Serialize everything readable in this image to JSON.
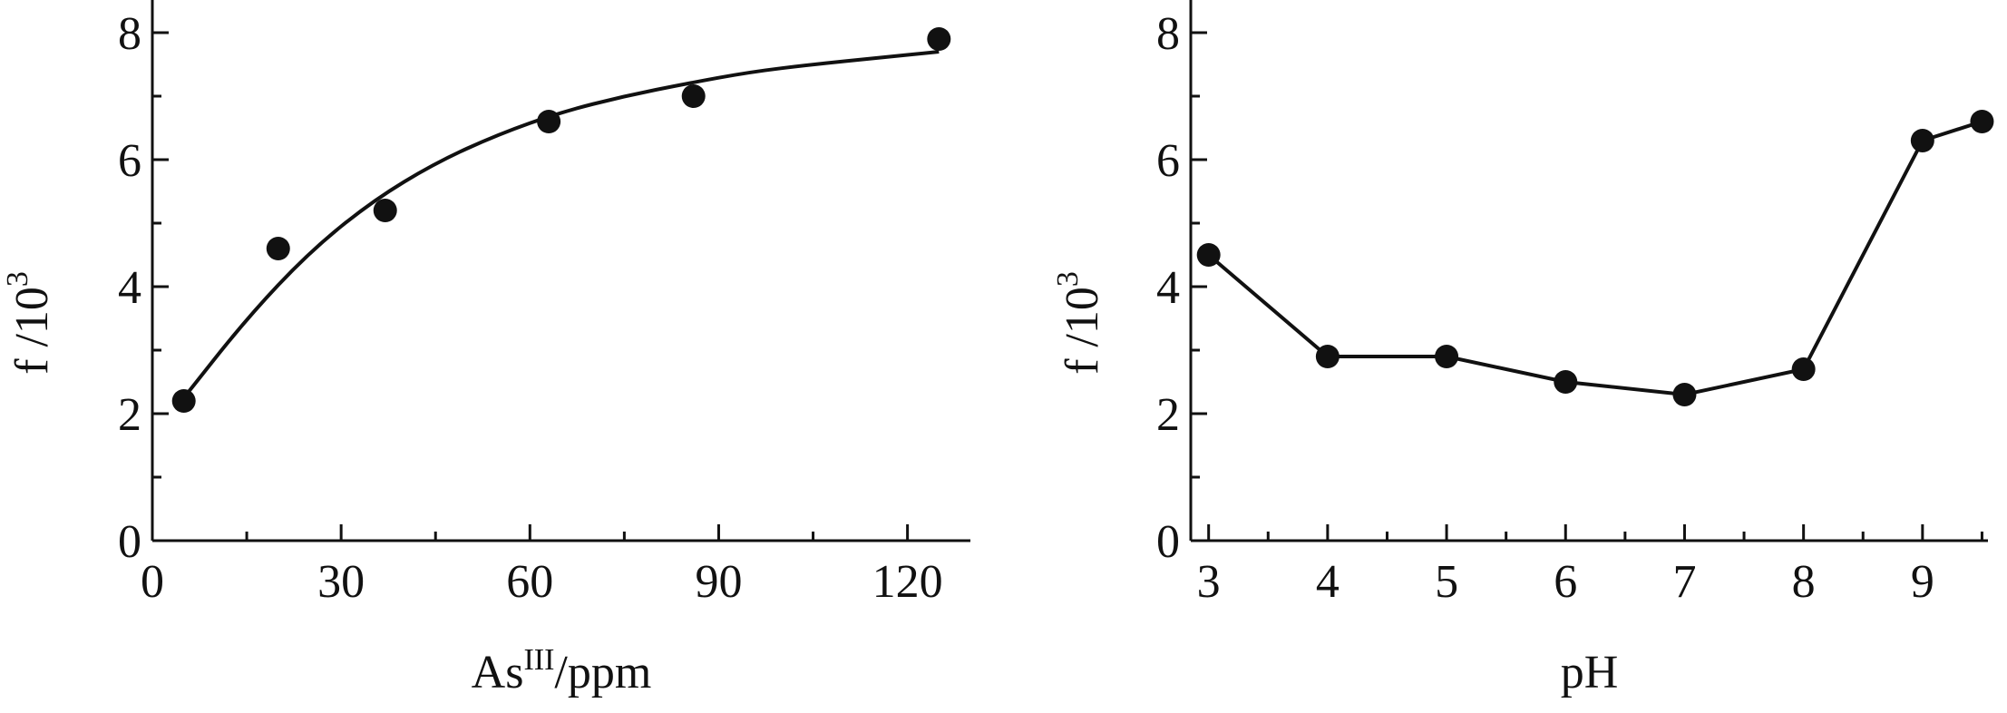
{
  "chart_data": [
    {
      "type": "scatter",
      "fit": "curve",
      "xlabel": {
        "base": "As",
        "sup": "III",
        "rest": "/ppm"
      },
      "ylabel": {
        "base": "f  /10",
        "sup": "3"
      },
      "xlim": [
        0,
        130
      ],
      "ylim": [
        0,
        8
      ],
      "xticks": [
        0,
        30,
        60,
        90,
        120
      ],
      "yticks": [
        0,
        2,
        4,
        6,
        8
      ],
      "x": [
        5,
        20,
        37,
        63,
        86,
        125
      ],
      "y": [
        2.2,
        4.6,
        5.2,
        6.6,
        7.0,
        7.9
      ],
      "fit_curve": {
        "x": [
          5,
          15,
          25,
          35,
          45,
          55,
          65,
          75,
          85,
          95,
          105,
          115,
          125
        ],
        "y": [
          2.25,
          3.5,
          4.55,
          5.35,
          5.95,
          6.4,
          6.75,
          7.0,
          7.2,
          7.38,
          7.5,
          7.6,
          7.7
        ]
      },
      "marker_color": "#111111",
      "line_color": "#111111",
      "grid": false
    },
    {
      "type": "line",
      "markers": true,
      "xlabel": {
        "base": "pH"
      },
      "ylabel": {
        "base": "f  /10",
        "sup": "3"
      },
      "xlim": [
        2.85,
        9.55
      ],
      "ylim": [
        0,
        8
      ],
      "xticks": [
        3,
        4,
        5,
        6,
        7,
        8,
        9
      ],
      "yticks": [
        0,
        2,
        4,
        6,
        8
      ],
      "x": [
        3,
        4,
        5,
        6,
        7,
        8,
        9,
        9.5
      ],
      "y": [
        4.5,
        2.9,
        2.9,
        2.5,
        2.3,
        2.7,
        6.3,
        6.6
      ],
      "marker_color": "#111111",
      "line_color": "#111111",
      "grid": false
    }
  ]
}
